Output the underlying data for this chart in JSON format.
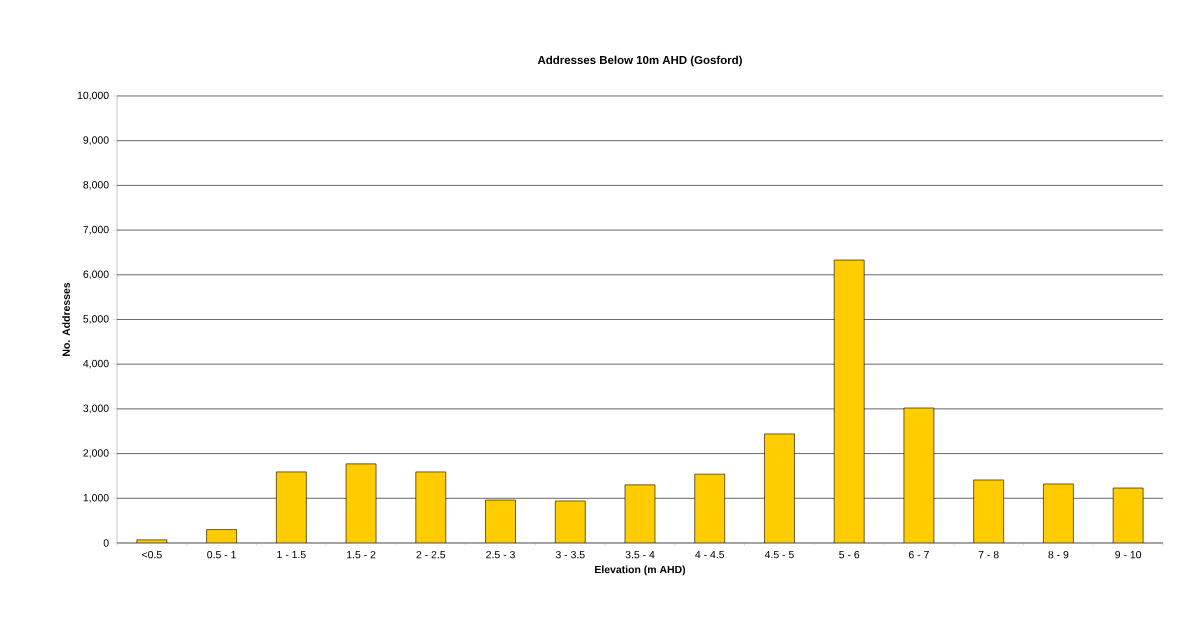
{
  "chart_data": {
    "type": "bar",
    "title": "Addresses Below 10m AHD (Gosford)",
    "xlabel": "Elevation (m AHD)",
    "ylabel": "No. Addresses",
    "categories": [
      "<0.5",
      "0.5 - 1",
      "1 - 1.5",
      "1.5 - 2",
      "2 - 2.5",
      "2.5 - 3",
      "3 - 3.5",
      "3.5 - 4",
      "4 - 4.5",
      "4.5 - 5",
      "5 - 6",
      "6 - 7",
      "7 - 8",
      "8 - 9",
      "9 - 10"
    ],
    "values": [
      70,
      300,
      1590,
      1770,
      1590,
      960,
      940,
      1300,
      1540,
      2440,
      6330,
      3020,
      1410,
      1320,
      1230
    ],
    "color": "#ffcc00",
    "ylim": [
      0,
      10000
    ],
    "yticks": [
      0,
      {
        "value": 1000,
        "label": "1,000"
      },
      {
        "value": 2000,
        "label": "2,000"
      },
      {
        "value": 3000,
        "label": "3,000"
      },
      {
        "value": 4000,
        "label": "4,000"
      },
      {
        "value": 5000,
        "label": "5,000"
      },
      {
        "value": 6000,
        "label": "6,000"
      },
      {
        "value": 7000,
        "label": "7,000"
      },
      {
        "value": 8000,
        "label": "8,000"
      },
      {
        "value": 9000,
        "label": "9,000"
      },
      {
        "value": 10000,
        "label": "10,000"
      }
    ],
    "grid": "y"
  }
}
